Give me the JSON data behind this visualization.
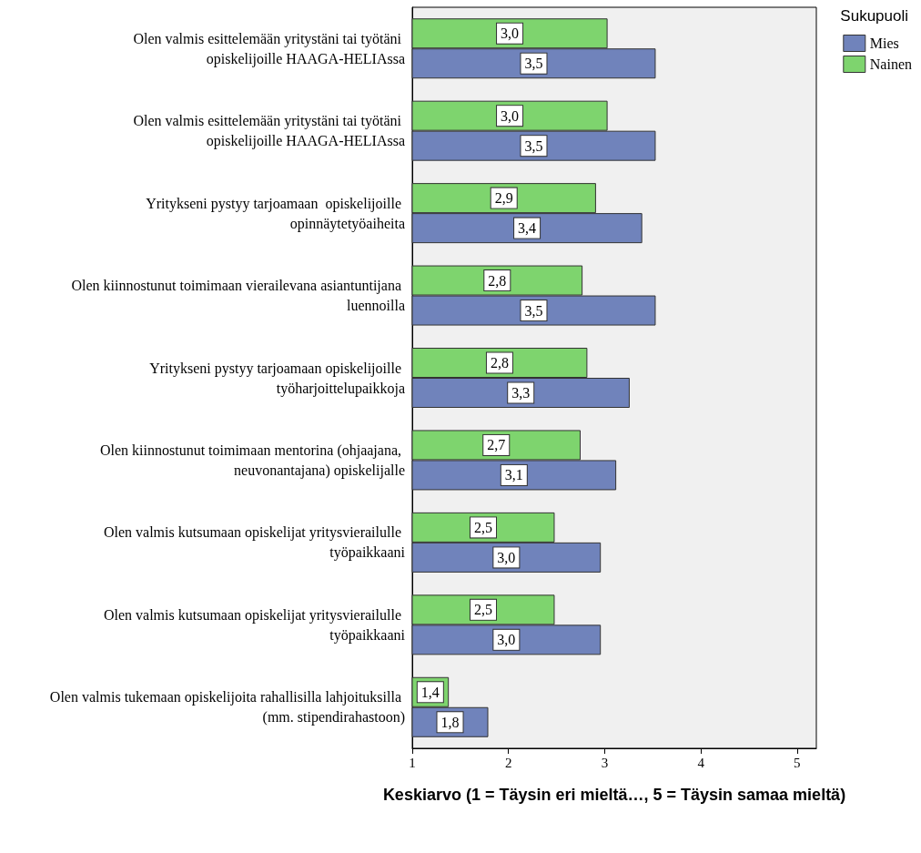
{
  "chart_data": {
    "type": "bar",
    "orientation": "horizontal",
    "xlabel": "Keskiarvo (1 = Täysin eri mieltä…, 5 = Täysin samaa mieltä)",
    "legend_title": "Sukupuoli",
    "legend": "top right",
    "categories": [
      "Olen valmis esittelemään yritystäni tai työtäni opiskelijoille HAAGA-HELIAssa",
      "Olen valmis esittelemään yritystäni tai työtäni opiskelijoille HAAGA-HELIAssa",
      "Yritykseni pystyy tarjoamaan  opiskelijoille opinnäytetyöaiheita",
      "Olen kiinnostunut toimimaan vierailevana asiantuntijana luennoilla",
      "Yritykseni pystyy tarjoamaan opiskelijoille työharjoittelupaikkoja",
      "Olen kiinnostunut toimimaan mentorina (ohjaajana, neuvonantajana) opiskelijalle",
      "Olen valmis kutsumaan opiskelijat yritysvierailulle työpaikkaani",
      "Olen valmis kutsumaan opiskelijat yritysvierailulle työpaikkaani",
      "Olen valmis tukemaan opiskelijoita rahallisilla lahjoituksilla (mm. stipendirahastoon)"
    ],
    "series": [
      {
        "name": "Nainen",
        "color": "#7ed46e",
        "values": [
          3.03,
          3.03,
          2.91,
          2.77,
          2.82,
          2.75,
          2.48,
          2.48,
          1.38
        ],
        "value_labels": [
          "3,0",
          "3,0",
          "2,9",
          "2,8",
          "2,8",
          "2,7",
          "2,5",
          "2,5",
          "1,4"
        ]
      },
      {
        "name": "Mies",
        "color": "#7083bb",
        "values": [
          3.53,
          3.53,
          3.39,
          3.53,
          3.26,
          3.12,
          2.96,
          2.96,
          1.79
        ],
        "value_labels": [
          "3,5",
          "3,5",
          "3,4",
          "3,5",
          "3,3",
          "3,1",
          "3,0",
          "3,0",
          "1,8"
        ]
      }
    ],
    "xlim": [
      1,
      5.2
    ],
    "xticks": [
      1,
      2,
      3,
      4,
      5
    ],
    "grid": false
  }
}
